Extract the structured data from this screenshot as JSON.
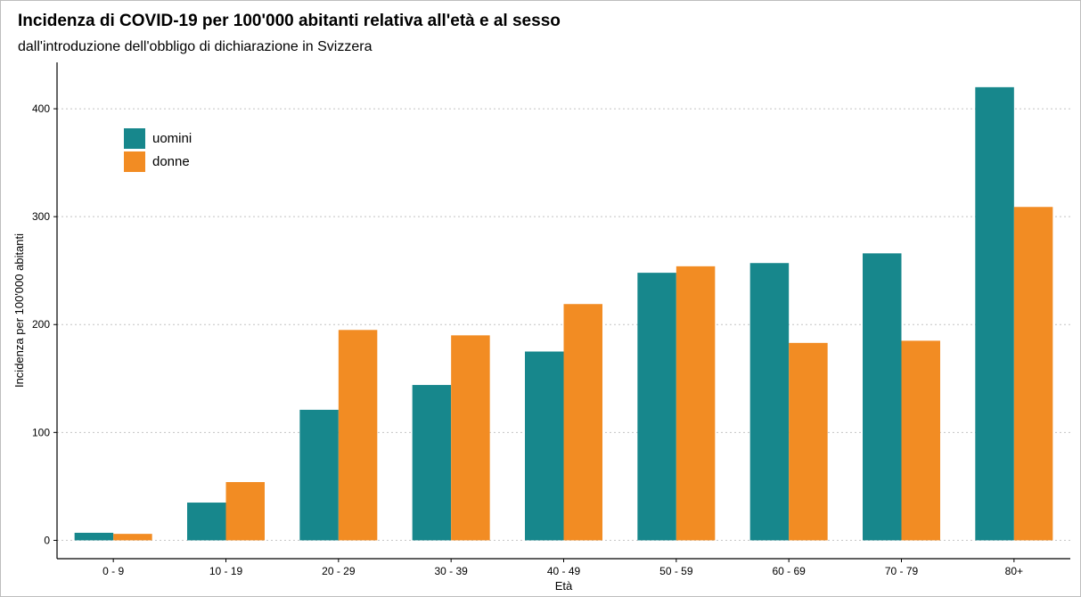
{
  "chart_data": {
    "type": "bar",
    "title": "Incidenza di COVID-19 per 100'000 abitanti relativa all'età e al sesso",
    "subtitle": "dall'introduzione dell'obbligo di dichiarazione in Svizzera",
    "xlabel": "Età",
    "ylabel": "Incidenza per 100'000 abitanti",
    "categories": [
      "0 - 9",
      "10 - 19",
      "20 - 29",
      "30 - 39",
      "40 - 49",
      "50 - 59",
      "60 - 69",
      "70 - 79",
      "80+"
    ],
    "series": [
      {
        "name": "uomini",
        "color": "#17878c",
        "values": [
          7,
          35,
          121,
          144,
          175,
          248,
          257,
          266,
          420
        ]
      },
      {
        "name": "donne",
        "color": "#f28c23",
        "values": [
          6,
          54,
          195,
          190,
          219,
          254,
          183,
          185,
          309
        ]
      }
    ],
    "ylim": [
      -17,
      443
    ],
    "yticks": [
      0,
      100,
      200,
      300,
      400
    ],
    "grid": "horizontal dotted",
    "legend_position": "top-left"
  }
}
